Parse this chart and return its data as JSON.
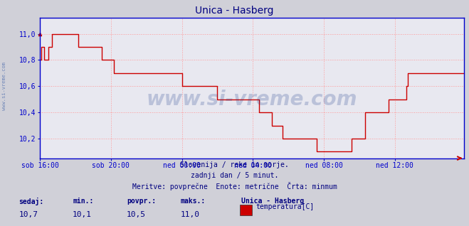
{
  "title": "Unica - Hasberg",
  "title_color": "#000080",
  "bg_color": "#d0d0d8",
  "plot_bg_color": "#e8e8f0",
  "grid_color": "#ff9999",
  "grid_style": ":",
  "line_color": "#cc0000",
  "axis_color": "#0000cc",
  "xlabel_color": "#000080",
  "ylabel_color": "#000080",
  "xlim": [
    0,
    287
  ],
  "ylim": [
    10.05,
    11.12
  ],
  "yticks": [
    10.2,
    10.4,
    10.6,
    10.8,
    11.0
  ],
  "ytick_labels": [
    "10,2",
    "10,4",
    "10,6",
    "10,8",
    "11,0"
  ],
  "xtick_positions": [
    0,
    48,
    96,
    144,
    192,
    240
  ],
  "xtick_labels": [
    "sob 16:00",
    "sob 20:00",
    "ned 00:00",
    "ned 04:00",
    "ned 08:00",
    "ned 12:00"
  ],
  "watermark": "www.si-vreme.com",
  "watermark_color": "#1a3a8a",
  "left_text": "www.si-vreme.com",
  "subtitle1": "Slovenija / reke in morje.",
  "subtitle2": "zadnji dan / 5 minut.",
  "subtitle3": "Meritve: povprečne  Enote: metrične  Črta: minmum",
  "footer_color": "#000080",
  "stat_labels": [
    "sedaj:",
    "min.:",
    "povpr.:",
    "maks.:"
  ],
  "stat_values": [
    "10,7",
    "10,1",
    "10,5",
    "11,0"
  ],
  "legend_title": "Unica - Hasberg",
  "legend_label": "temperatura[C]",
  "legend_color": "#cc0000",
  "data_y": [
    10.8,
    10.9,
    10.9,
    10.8,
    10.8,
    10.8,
    10.9,
    10.9,
    11.0,
    11.0,
    11.0,
    11.0,
    11.0,
    11.0,
    11.0,
    11.0,
    11.0,
    11.0,
    11.0,
    11.0,
    11.0,
    11.0,
    11.0,
    11.0,
    11.0,
    11.0,
    10.9,
    10.9,
    10.9,
    10.9,
    10.9,
    10.9,
    10.9,
    10.9,
    10.9,
    10.9,
    10.9,
    10.9,
    10.9,
    10.9,
    10.9,
    10.9,
    10.8,
    10.8,
    10.8,
    10.8,
    10.8,
    10.8,
    10.8,
    10.8,
    10.7,
    10.7,
    10.7,
    10.7,
    10.7,
    10.7,
    10.7,
    10.7,
    10.7,
    10.7,
    10.7,
    10.7,
    10.7,
    10.7,
    10.7,
    10.7,
    10.7,
    10.7,
    10.7,
    10.7,
    10.7,
    10.7,
    10.7,
    10.7,
    10.7,
    10.7,
    10.7,
    10.7,
    10.7,
    10.7,
    10.7,
    10.7,
    10.7,
    10.7,
    10.7,
    10.7,
    10.7,
    10.7,
    10.7,
    10.7,
    10.7,
    10.7,
    10.7,
    10.7,
    10.7,
    10.7,
    10.6,
    10.6,
    10.6,
    10.6,
    10.6,
    10.6,
    10.6,
    10.6,
    10.6,
    10.6,
    10.6,
    10.6,
    10.6,
    10.6,
    10.6,
    10.6,
    10.6,
    10.6,
    10.6,
    10.6,
    10.6,
    10.6,
    10.6,
    10.6,
    10.5,
    10.5,
    10.5,
    10.5,
    10.5,
    10.5,
    10.5,
    10.5,
    10.5,
    10.5,
    10.5,
    10.5,
    10.5,
    10.5,
    10.5,
    10.5,
    10.5,
    10.5,
    10.5,
    10.5,
    10.5,
    10.5,
    10.5,
    10.5,
    10.5,
    10.5,
    10.5,
    10.5,
    10.4,
    10.4,
    10.4,
    10.4,
    10.4,
    10.4,
    10.4,
    10.4,
    10.4,
    10.3,
    10.3,
    10.3,
    10.3,
    10.3,
    10.3,
    10.3,
    10.2,
    10.2,
    10.2,
    10.2,
    10.2,
    10.2,
    10.2,
    10.2,
    10.2,
    10.2,
    10.2,
    10.2,
    10.2,
    10.2,
    10.2,
    10.2,
    10.2,
    10.2,
    10.2,
    10.2,
    10.2,
    10.2,
    10.2,
    10.1,
    10.1,
    10.1,
    10.1,
    10.1,
    10.1,
    10.1,
    10.1,
    10.1,
    10.1,
    10.1,
    10.1,
    10.1,
    10.1,
    10.1,
    10.1,
    10.1,
    10.1,
    10.1,
    10.1,
    10.1,
    10.1,
    10.1,
    10.1,
    10.2,
    10.2,
    10.2,
    10.2,
    10.2,
    10.2,
    10.2,
    10.2,
    10.2,
    10.4,
    10.4,
    10.4,
    10.4,
    10.4,
    10.4,
    10.4,
    10.4,
    10.4,
    10.4,
    10.4,
    10.4,
    10.4,
    10.4,
    10.4,
    10.4,
    10.5,
    10.5,
    10.5,
    10.5,
    10.5,
    10.5,
    10.5,
    10.5,
    10.5,
    10.5,
    10.5,
    10.5,
    10.6,
    10.7,
    10.7,
    10.7,
    10.7,
    10.7,
    10.7,
    10.7,
    10.7,
    10.7,
    10.7,
    10.7,
    10.7,
    10.7,
    10.7,
    10.7,
    10.7,
    10.7,
    10.7,
    10.7,
    10.7,
    10.7,
    10.7,
    10.7,
    10.7,
    10.7,
    10.7,
    10.7,
    10.7,
    10.7,
    10.7,
    10.7,
    10.7,
    10.7,
    10.7,
    10.7,
    10.7,
    10.7,
    10.7,
    10.7
  ]
}
